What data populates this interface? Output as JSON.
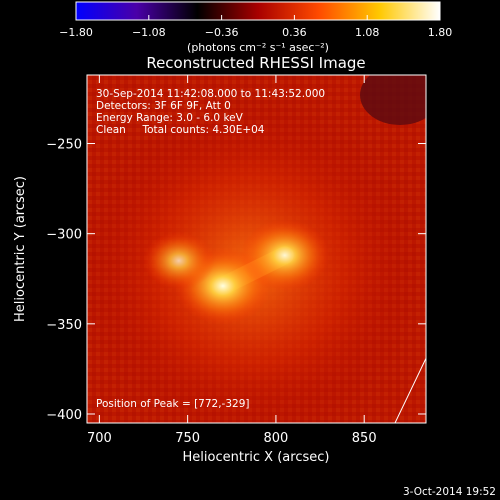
{
  "chart_data": {
    "type": "heatmap",
    "title": "Reconstructed RHESSI Image",
    "xlabel": "Heliocentric X (arcsec)",
    "ylabel": "Heliocentric Y (arcsec)",
    "xlim": [
      693,
      885
    ],
    "ylim": [
      -405,
      -212
    ],
    "x_ticks": [
      700,
      750,
      800,
      850
    ],
    "y_ticks": [
      -250,
      -300,
      -350,
      -400
    ],
    "x_tick_labels": [
      "700",
      "750",
      "800",
      "850"
    ],
    "y_tick_labels": [
      "−250",
      "−300",
      "−350",
      "−400"
    ],
    "colorbar": {
      "range": [
        -1.8,
        1.8
      ],
      "ticks": [
        -1.8,
        -1.08,
        -0.36,
        0.36,
        1.08,
        1.8
      ],
      "tick_labels": [
        "−1.80",
        "−1.08",
        "−0.36",
        "0.36",
        "1.08",
        "1.80"
      ],
      "label": "(photons cm⁻² s⁻¹ asec⁻²)",
      "colormap": [
        "#0000ff",
        "#4a00a8",
        "#000000",
        "#a80000",
        "#ff4a00",
        "#ffc800",
        "#ffffff"
      ]
    },
    "sources": [
      {
        "x": 770,
        "y": -329,
        "intensity": 1.0
      },
      {
        "x": 805,
        "y": -312,
        "intensity": 0.9
      },
      {
        "x": 745,
        "y": -315,
        "intensity": 0.6
      }
    ],
    "annotations": [
      "30-Sep-2014 11:42:08.000 to 11:43:52.000",
      "Detectors: 3F 6F 9F, Att 0",
      "Energy Range: 3.0 - 6.0 keV",
      "Clean     Total counts: 4.30E+04",
      "Position of Peak = [772,-329]"
    ],
    "timestamp": "3-Oct-2014 19:52"
  }
}
